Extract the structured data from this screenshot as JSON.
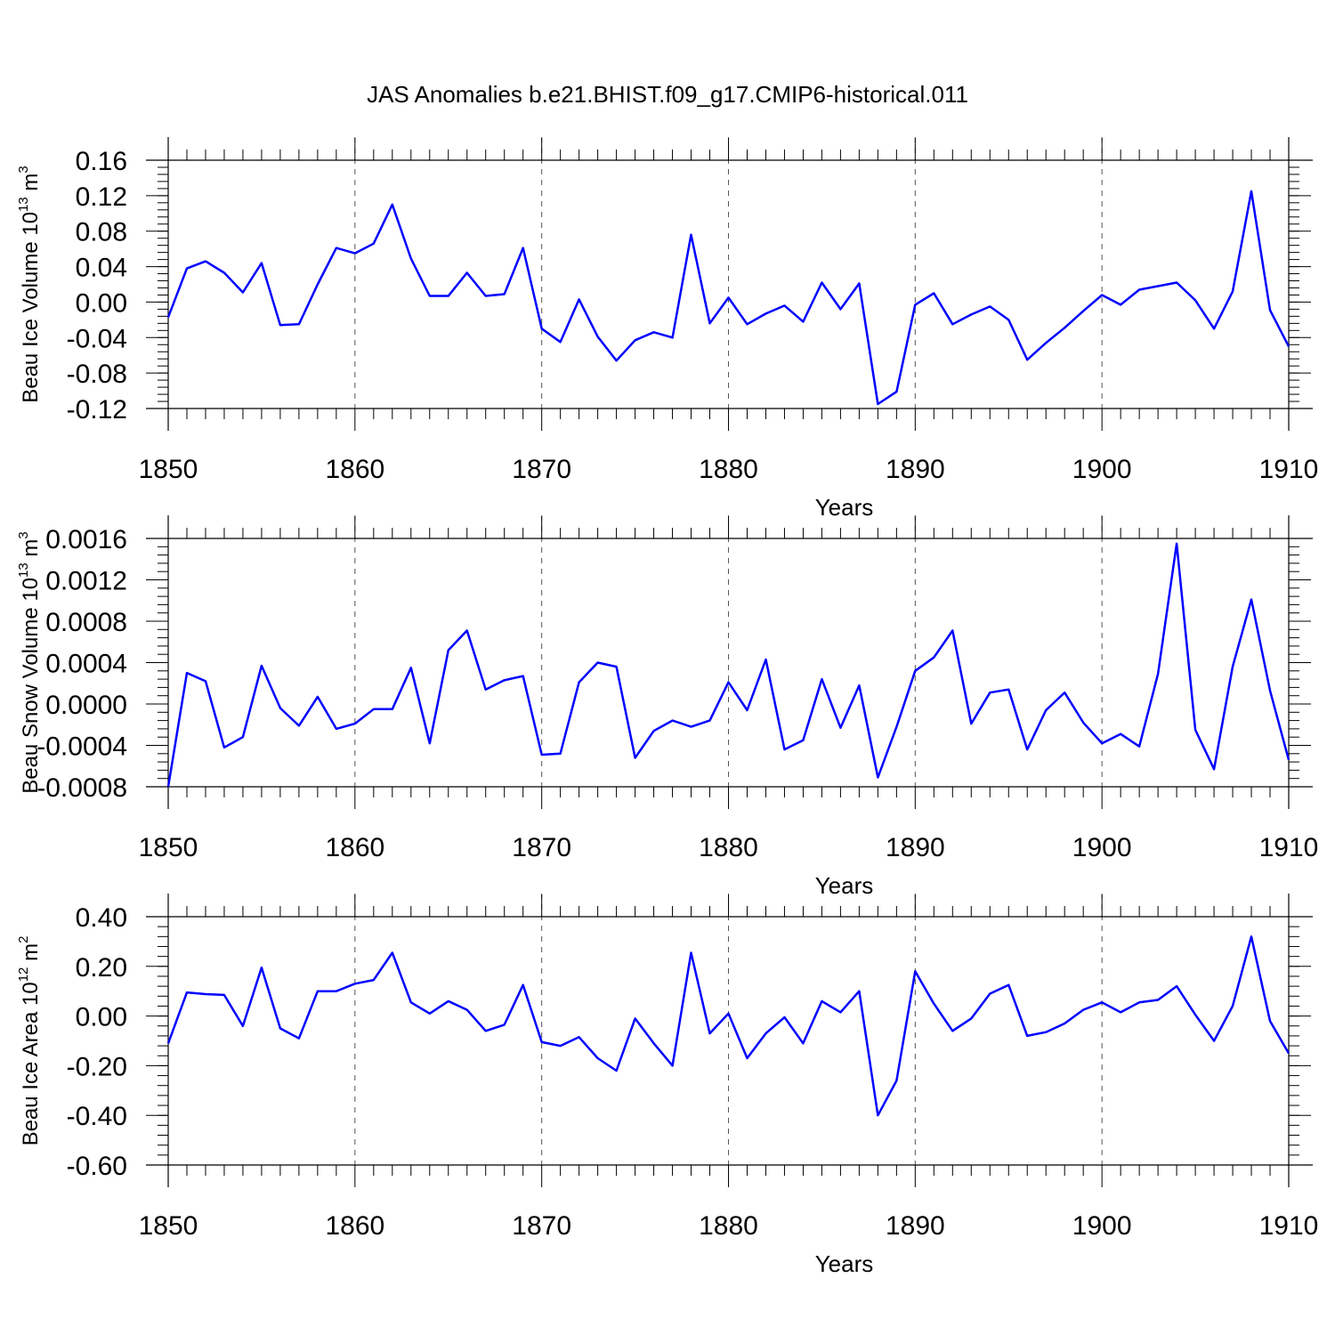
{
  "page_title": "JAS Anomalies b.e21.BHIST.f09_g17.CMIP6-historical.011",
  "colors": {
    "line": "#0000ff",
    "axes": "#000000",
    "grid": "#555555"
  },
  "chart_data": [
    {
      "type": "line",
      "title": "JAS Anomalies b.e21.BHIST.f09_g17.CMIP6-historical.011",
      "xlabel": "Years",
      "ylabel": {
        "text": "Beau Ice Volume 10",
        "exp": "13",
        "unit": " m",
        "unit_exp": "3"
      },
      "xlim": [
        1850,
        1910
      ],
      "ylim": [
        -0.12,
        0.16
      ],
      "ymajor": [
        -0.12,
        -0.08,
        -0.04,
        0.0,
        0.04,
        0.08,
        0.12,
        0.16
      ],
      "ytick_labels": [
        "-0.12",
        "-0.08",
        "-0.04",
        "0.00",
        "0.04",
        "0.08",
        "0.12",
        "0.16"
      ],
      "yminor_step": 0.008,
      "xtick_labels": [
        "1850",
        "1860",
        "1870",
        "1880",
        "1890",
        "1900",
        "1910"
      ],
      "x_start": 1850,
      "values": [
        -0.017,
        0.038,
        0.046,
        0.033,
        0.011,
        0.044,
        -0.026,
        -0.025,
        0.02,
        0.061,
        0.055,
        0.066,
        0.11,
        0.049,
        0.007,
        0.007,
        0.033,
        0.007,
        0.009,
        0.061,
        -0.03,
        -0.045,
        0.003,
        -0.039,
        -0.066,
        -0.043,
        -0.034,
        -0.04,
        0.076,
        -0.024,
        0.005,
        -0.025,
        -0.013,
        -0.004,
        -0.022,
        0.022,
        -0.008,
        0.021,
        -0.115,
        -0.101,
        -0.003,
        0.01,
        -0.025,
        -0.014,
        -0.005,
        -0.02,
        -0.065,
        -0.046,
        -0.029,
        -0.01,
        0.008,
        -0.003,
        0.014,
        0.018,
        0.022,
        0.002,
        -0.03,
        0.012,
        0.125,
        -0.009,
        -0.05
      ]
    },
    {
      "type": "line",
      "title": "",
      "xlabel": "Years",
      "ylabel": {
        "text": "Beau Snow Volume 10",
        "exp": "13",
        "unit": " m",
        "unit_exp": "3"
      },
      "xlim": [
        1850,
        1910
      ],
      "ylim": [
        -0.0008,
        0.0016
      ],
      "ymajor": [
        -0.0008,
        -0.0004,
        0.0,
        0.0004,
        0.0008,
        0.0012,
        0.0016
      ],
      "ytick_labels": [
        "-0.0008",
        "-0.0004",
        "0.0000",
        "0.0004",
        "0.0008",
        "0.0012",
        "0.0016"
      ],
      "yminor_step": 8e-05,
      "xtick_labels": [
        "1850",
        "1860",
        "1870",
        "1880",
        "1890",
        "1900",
        "1910"
      ],
      "x_start": 1850,
      "values": [
        -0.0008,
        0.0003,
        0.00022,
        -0.00042,
        -0.00032,
        0.00037,
        -4e-05,
        -0.00021,
        7e-05,
        -0.00024,
        -0.00019,
        -5e-05,
        -5e-05,
        0.00035,
        -0.00038,
        0.00052,
        0.00071,
        0.00014,
        0.00023,
        0.00027,
        -0.00049,
        -0.00048,
        0.00021,
        0.0004,
        0.00036,
        -0.00052,
        -0.00026,
        -0.00016,
        -0.00022,
        -0.00016,
        0.00021,
        -6e-05,
        0.00043,
        -0.00044,
        -0.00035,
        0.00024,
        -0.00023,
        0.00018,
        -0.00071,
        -0.00022,
        0.00032,
        0.00045,
        0.00071,
        -0.00019,
        0.00011,
        0.00014,
        -0.00044,
        -6e-05,
        0.00011,
        -0.00018,
        -0.00038,
        -0.00029,
        -0.00041,
        0.00029,
        0.00155,
        -0.00025,
        -0.00063,
        0.00036,
        0.00101,
        0.00013,
        -0.00054
      ]
    },
    {
      "type": "line",
      "title": "",
      "xlabel": "Years",
      "ylabel": {
        "text": "Beau Ice Area 10",
        "exp": "12",
        "unit": " m",
        "unit_exp": "2"
      },
      "xlim": [
        1850,
        1910
      ],
      "ylim": [
        -0.6,
        0.4
      ],
      "ymajor": [
        -0.6,
        -0.4,
        -0.2,
        0.0,
        0.2,
        0.4
      ],
      "ytick_labels": [
        "-0.60",
        "-0.40",
        "-0.20",
        "0.00",
        "0.20",
        "0.40"
      ],
      "yminor_step": 0.04,
      "xtick_labels": [
        "1850",
        "1860",
        "1870",
        "1880",
        "1890",
        "1900",
        "1910"
      ],
      "x_start": 1850,
      "values": [
        -0.11,
        0.095,
        0.088,
        0.085,
        -0.04,
        0.195,
        -0.05,
        -0.09,
        0.1,
        0.1,
        0.13,
        0.145,
        0.255,
        0.055,
        0.01,
        0.06,
        0.025,
        -0.06,
        -0.035,
        0.125,
        -0.105,
        -0.12,
        -0.085,
        -0.17,
        -0.22,
        -0.01,
        -0.11,
        -0.2,
        0.255,
        -0.07,
        0.01,
        -0.17,
        -0.07,
        -0.005,
        -0.11,
        0.06,
        0.015,
        0.1,
        -0.4,
        -0.26,
        0.18,
        0.05,
        -0.06,
        -0.01,
        0.09,
        0.125,
        -0.08,
        -0.065,
        -0.03,
        0.025,
        0.055,
        0.015,
        0.055,
        0.065,
        0.12,
        0.005,
        -0.1,
        0.04,
        0.32,
        -0.02,
        -0.15
      ]
    }
  ]
}
